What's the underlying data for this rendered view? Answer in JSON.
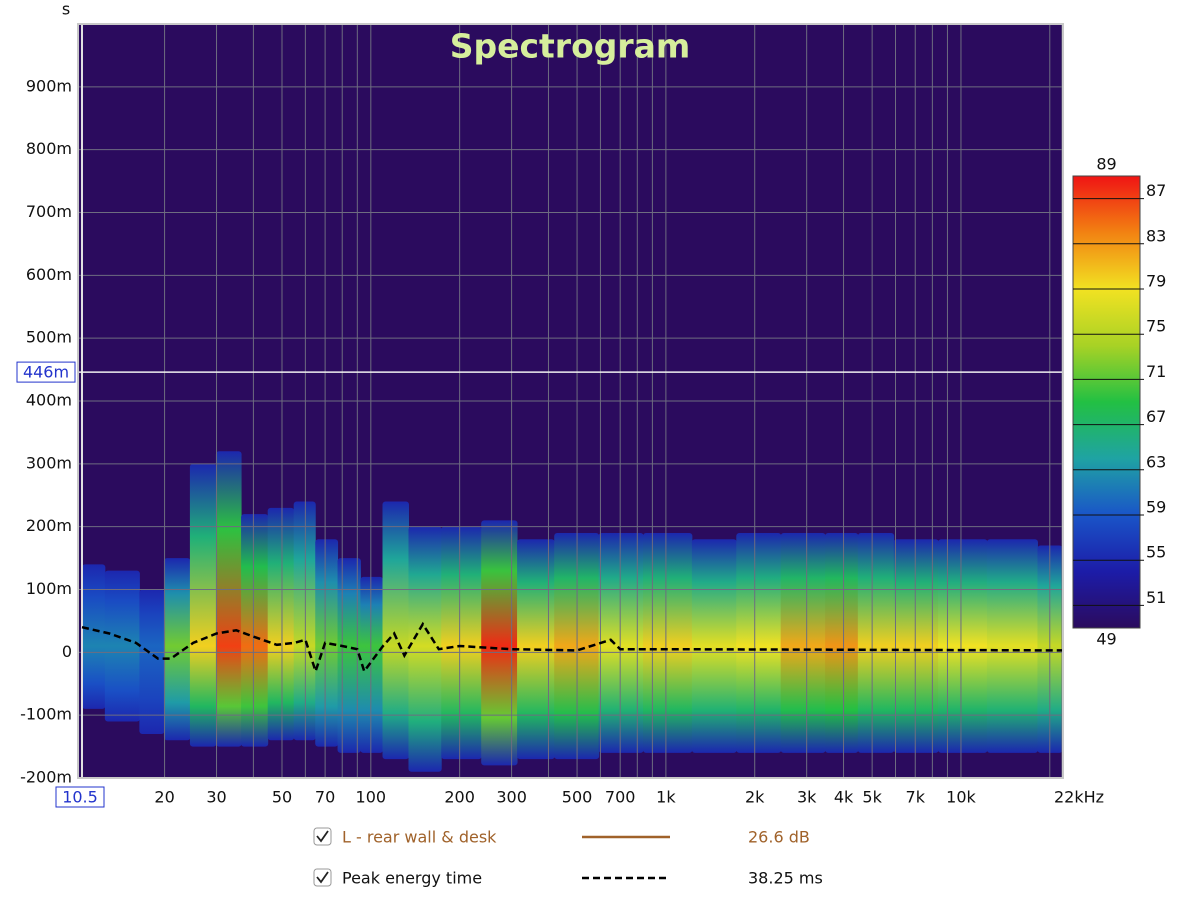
{
  "chart_data": {
    "type": "spectrogram",
    "title": "Spectrogram",
    "y_label": "s",
    "xlim": [
      10.5,
      22000
    ],
    "xlog": true,
    "xticks": [
      10.5,
      20,
      30,
      50,
      70,
      100,
      200,
      300,
      500,
      700,
      {
        "value": 1000,
        "label": "1k"
      },
      {
        "value": 2000,
        "label": "2k"
      },
      {
        "value": 3000,
        "label": "3k"
      },
      {
        "value": 4000,
        "label": "4k"
      },
      {
        "value": 5000,
        "label": "5k"
      },
      {
        "value": 7000,
        "label": "7k"
      },
      {
        "value": 10000,
        "label": "10k"
      },
      {
        "value": 22000,
        "label": "22kHz"
      }
    ],
    "x_minor_grid": [
      40,
      60,
      80,
      90,
      400,
      600,
      800,
      900,
      6000,
      8000,
      9000,
      20000
    ],
    "ylim": [
      -0.2,
      1.0
    ],
    "yticks": [
      {
        "value": -0.2,
        "label": "-200m"
      },
      {
        "value": -0.1,
        "label": "-100m"
      },
      0,
      {
        "value": 0.1,
        "label": "100m"
      },
      {
        "value": 0.2,
        "label": "200m"
      },
      {
        "value": 0.3,
        "label": "300m"
      },
      {
        "value": 0.4,
        "label": "400m"
      },
      {
        "value": 0.5,
        "label": "500m"
      },
      {
        "value": 0.6,
        "label": "600m"
      },
      {
        "value": 0.7,
        "label": "700m"
      },
      {
        "value": 0.8,
        "label": "800m"
      },
      {
        "value": 0.9,
        "label": "900m"
      }
    ],
    "grid": true,
    "y_cursor": {
      "value": 0.446,
      "label": "446m"
    },
    "background": "#2b0b5e",
    "colormap": [
      "#2b0b5e",
      "#1c1ca8",
      "#1a55c8",
      "#1fa3a3",
      "#22c043",
      "#a8d225",
      "#f2e222",
      "#f28212",
      "#f01414"
    ],
    "colorbar": {
      "range": [
        49,
        89
      ],
      "ticks": [
        51,
        55,
        59,
        63,
        67,
        71,
        75,
        79,
        83,
        87
      ]
    },
    "frequencies": [
      10.5,
      15,
      18,
      22,
      27,
      33,
      40,
      50,
      60,
      70,
      85,
      100,
      120,
      150,
      200,
      280,
      350,
      500,
      700,
      1000,
      1500,
      2000,
      3000,
      4000,
      5000,
      7000,
      10000,
      15000,
      22000
    ],
    "top": [
      0.14,
      0.13,
      0.1,
      0.15,
      0.3,
      0.32,
      0.22,
      0.23,
      0.24,
      0.18,
      0.15,
      0.12,
      0.24,
      0.2,
      0.2,
      0.21,
      0.18,
      0.19,
      0.19,
      0.19,
      0.18,
      0.19,
      0.19,
      0.19,
      0.19,
      0.18,
      0.18,
      0.18,
      0.17
    ],
    "bottom": [
      -0.09,
      -0.11,
      -0.13,
      -0.14,
      -0.15,
      -0.15,
      -0.15,
      -0.14,
      -0.14,
      -0.15,
      -0.16,
      -0.16,
      -0.17,
      -0.19,
      -0.17,
      -0.18,
      -0.17,
      -0.17,
      -0.16,
      -0.16,
      -0.16,
      -0.16,
      -0.16,
      -0.16,
      -0.16,
      -0.16,
      -0.16,
      -0.16,
      -0.16
    ],
    "peak_db": [
      62,
      62,
      60,
      72,
      80,
      87,
      85,
      80,
      76,
      72,
      70,
      70,
      76,
      77,
      80,
      88,
      80,
      82,
      78,
      80,
      78,
      79,
      82,
      83,
      80,
      80,
      79,
      78,
      76
    ],
    "series": [
      {
        "name": "Peak energy time",
        "color": "#000000",
        "dash": true,
        "readout": "38.25 ms",
        "x": [
          10.5,
          13,
          16,
          19,
          21,
          25,
          30,
          35,
          40,
          48,
          55,
          60,
          65,
          70,
          80,
          90,
          95,
          110,
          120,
          130,
          150,
          170,
          200,
          300,
          500,
          650,
          700,
          1000,
          22000
        ],
        "values": [
          0.04,
          0.03,
          0.015,
          -0.01,
          -0.01,
          0.015,
          0.03,
          0.035,
          0.025,
          0.012,
          0.015,
          0.02,
          -0.03,
          0.015,
          0.01,
          0.005,
          -0.03,
          0.01,
          0.03,
          -0.005,
          0.045,
          0.005,
          0.01,
          0.005,
          0.003,
          0.02,
          0.005,
          0.005,
          0.003
        ]
      }
    ],
    "legend": [
      {
        "name": "L - rear wall & desk",
        "color": "#a0622a",
        "readout": "26.6 dB"
      }
    ]
  }
}
